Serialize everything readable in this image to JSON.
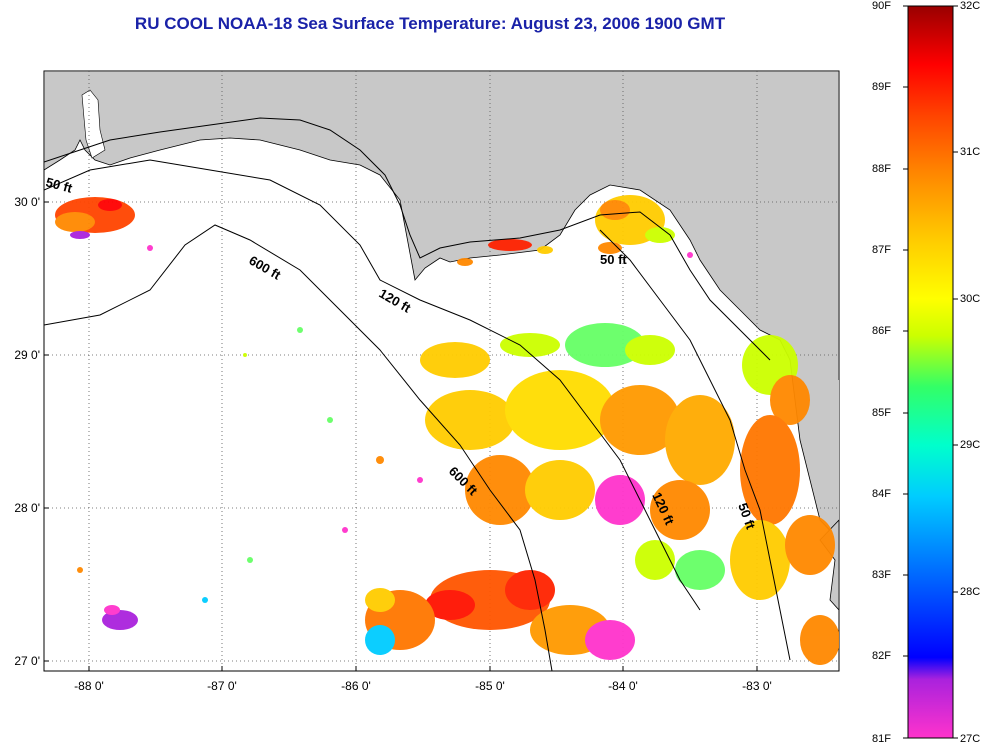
{
  "title": "RU COOL  NOAA-18  Sea Surface Temperature:  August 23, 2006 1900 GMT",
  "map": {
    "lon_ticks": [
      "-88 0'",
      "-87 0'",
      "-86 0'",
      "-85 0'",
      "-84 0'",
      "-83 0'"
    ],
    "lat_ticks": [
      "30 0'",
      "29 0'",
      "28 0'",
      "27 0'"
    ],
    "contours": {
      "c50_top": "50 ft",
      "c600_upper": "600 ft",
      "c120_upper": "120 ft",
      "c50_right_top": "50 ft",
      "c600_lower": "600 ft",
      "c120_lower": "120 ft",
      "c50_right_lower": "50 ft"
    },
    "colors": {
      "land": "#c8c8c8",
      "no_data": "#ffffff",
      "grid": "#555555"
    }
  },
  "colorbar": {
    "fahrenheit_labels": [
      "90F",
      "89F",
      "88F",
      "87F",
      "86F",
      "85F",
      "84F",
      "83F",
      "82F",
      "81F"
    ],
    "celsius_labels": [
      "32C",
      "31C",
      "30C",
      "29C",
      "28C",
      "27C"
    ],
    "colors": [
      "#ff33cc",
      "#7722cc",
      "#0000ff",
      "#0066ff",
      "#00ccff",
      "#00ffcc",
      "#33ff66",
      "#ccff00",
      "#ffff00",
      "#ffcc00",
      "#ff8800",
      "#ff4400",
      "#ff0000",
      "#990000"
    ]
  }
}
